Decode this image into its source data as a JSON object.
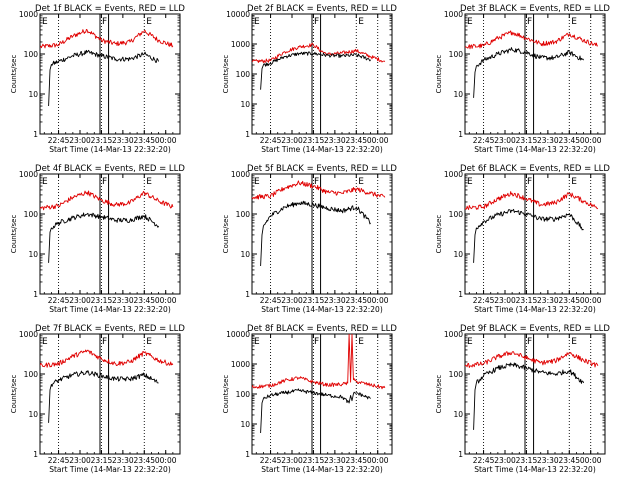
{
  "colors": {
    "events": "#000000",
    "lld": "#e00000",
    "axis": "#000000"
  },
  "chart_data": [
    {
      "type": "line",
      "title": "Det 1f BLACK = Events, RED = LLD",
      "xlabel": "Start Time (14-Mar-13 22:32:20)",
      "ylabel": "Counts/sec",
      "yscale": "log",
      "ylim": [
        1,
        1000
      ],
      "ytick_labels": [
        "1",
        "10",
        "100",
        "1000"
      ],
      "xlim": [
        "22:32",
        "00:10"
      ],
      "xtick_labels": [
        "22:45",
        "23:00",
        "23:15",
        "23:30",
        "23:45",
        "00:00"
      ],
      "markers": {
        "dotted": [
          "22:45",
          "23:15",
          "23:45"
        ],
        "solid": [
          "23:14",
          "23:20"
        ],
        "letters": [
          {
            "at": "22:32",
            "text": "E"
          },
          {
            "at": "23:14",
            "text": "F"
          },
          {
            "at": "23:45",
            "text": "E"
          }
        ]
      },
      "series": [
        {
          "color": "#e00000",
          "x": [
            "22:32",
            "22:45",
            "22:55",
            "23:05",
            "23:15",
            "23:25",
            "23:35",
            "23:45",
            "23:55",
            "00:05"
          ],
          "values": [
            150,
            170,
            280,
            400,
            220,
            180,
            200,
            380,
            220,
            160
          ]
        },
        {
          "color": "#000000",
          "x": [
            "22:38",
            "22:39",
            "22:40",
            "22:45",
            "22:55",
            "23:05",
            "23:15",
            "23:25",
            "23:35",
            "23:45",
            "23:55"
          ],
          "values": [
            5,
            40,
            55,
            65,
            90,
            110,
            90,
            75,
            75,
            100,
            65
          ]
        }
      ]
    },
    {
      "type": "line",
      "title": "Det 2f BLACK = Events, RED = LLD",
      "xlabel": "Start Time (14-Mar-13 22:32:20)",
      "ylabel": "Counts/sec",
      "yscale": "log",
      "ylim": [
        1,
        10000
      ],
      "ytick_labels": [
        "1",
        "10",
        "100",
        "1000",
        "10000"
      ],
      "xlim": [
        "22:32",
        "00:10"
      ],
      "xtick_labels": [
        "22:45",
        "23:00",
        "23:15",
        "23:30",
        "23:45",
        "00:00"
      ],
      "markers": {
        "dotted": [
          "22:45",
          "23:15",
          "23:45",
          "00:00"
        ],
        "solid": [
          "23:14",
          "23:20"
        ],
        "letters": [
          {
            "at": "22:32",
            "text": "E"
          },
          {
            "at": "23:14",
            "text": "F"
          },
          {
            "at": "23:45",
            "text": "E"
          }
        ]
      },
      "series": [
        {
          "color": "#e00000",
          "x": [
            "22:32",
            "22:45",
            "22:55",
            "23:05",
            "23:15",
            "23:20",
            "23:25",
            "23:35",
            "23:45",
            "23:55",
            "00:05"
          ],
          "values": [
            260,
            280,
            550,
            800,
            950,
            600,
            450,
            500,
            600,
            380,
            260
          ]
        },
        {
          "color": "#000000",
          "x": [
            "22:38",
            "22:39",
            "22:40",
            "22:45",
            "22:55",
            "23:05",
            "23:15",
            "23:25",
            "23:35",
            "23:45",
            "23:55"
          ],
          "values": [
            30,
            150,
            200,
            230,
            380,
            480,
            480,
            420,
            400,
            430,
            300
          ]
        }
      ]
    },
    {
      "type": "line",
      "title": "Det 3f BLACK = Events, RED = LLD",
      "xlabel": "Start Time (14-Mar-13 22:32:20)",
      "ylabel": "Counts/sec",
      "yscale": "log",
      "ylim": [
        1,
        1000
      ],
      "ytick_labels": [
        "1",
        "10",
        "100",
        "1000"
      ],
      "xlim": [
        "22:32",
        "00:10"
      ],
      "xtick_labels": [
        "22:45",
        "23:00",
        "23:15",
        "23:30",
        "23:45",
        "00:00"
      ],
      "markers": {
        "dotted": [
          "22:45",
          "23:15",
          "23:45",
          "00:00"
        ],
        "solid": [
          "23:14",
          "23:20"
        ],
        "letters": [
          {
            "at": "22:32",
            "text": "E"
          },
          {
            "at": "23:14",
            "text": "F"
          },
          {
            "at": "23:45",
            "text": "E"
          }
        ]
      },
      "series": [
        {
          "color": "#e00000",
          "x": [
            "22:32",
            "22:45",
            "22:55",
            "23:05",
            "23:15",
            "23:25",
            "23:35",
            "23:45",
            "23:55",
            "00:05"
          ],
          "values": [
            150,
            160,
            250,
            350,
            250,
            180,
            200,
            320,
            220,
            160
          ]
        },
        {
          "color": "#000000",
          "x": [
            "22:38",
            "22:39",
            "22:40",
            "22:45",
            "22:55",
            "23:05",
            "23:15",
            "23:25",
            "23:35",
            "23:45",
            "23:55"
          ],
          "values": [
            8,
            35,
            50,
            70,
            100,
            130,
            110,
            80,
            80,
            110,
            70
          ]
        }
      ]
    },
    {
      "type": "line",
      "title": "Det 4f BLACK = Events, RED = LLD",
      "xlabel": "Start Time (14-Mar-13 22:32:20)",
      "ylabel": "Counts/sec",
      "yscale": "log",
      "ylim": [
        1,
        1000
      ],
      "ytick_labels": [
        "1",
        "10",
        "100",
        "1000"
      ],
      "xlim": [
        "22:32",
        "00:10"
      ],
      "xtick_labels": [
        "22:45",
        "23:00",
        "23:15",
        "23:30",
        "23:45",
        "00:00"
      ],
      "markers": {
        "dotted": [
          "22:45",
          "23:15",
          "23:45"
        ],
        "solid": [
          "23:14",
          "23:20"
        ],
        "letters": [
          {
            "at": "22:32",
            "text": "E"
          },
          {
            "at": "23:14",
            "text": "F"
          },
          {
            "at": "23:45",
            "text": "E"
          }
        ]
      },
      "series": [
        {
          "color": "#e00000",
          "x": [
            "22:32",
            "22:45",
            "22:55",
            "23:05",
            "23:15",
            "23:25",
            "23:35",
            "23:45",
            "23:55",
            "00:05"
          ],
          "values": [
            140,
            160,
            260,
            350,
            220,
            170,
            190,
            340,
            210,
            150
          ]
        },
        {
          "color": "#000000",
          "x": [
            "22:38",
            "22:39",
            "22:40",
            "22:45",
            "22:55",
            "23:05",
            "23:15",
            "23:25",
            "23:35",
            "23:45",
            "23:55"
          ],
          "values": [
            6,
            35,
            45,
            60,
            80,
            100,
            85,
            70,
            70,
            90,
            50
          ]
        }
      ]
    },
    {
      "type": "line",
      "title": "Det 5f BLACK = Events, RED = LLD",
      "xlabel": "Start Time (14-Mar-13 22:32:20)",
      "ylabel": "Counts/sec",
      "yscale": "log",
      "ylim": [
        1,
        1000
      ],
      "ytick_labels": [
        "1",
        "10",
        "100",
        "1000"
      ],
      "xlim": [
        "22:32",
        "00:10"
      ],
      "xtick_labels": [
        "22:45",
        "23:00",
        "23:15",
        "23:30",
        "23:45",
        "00:00"
      ],
      "markers": {
        "dotted": [
          "22:45",
          "23:15",
          "23:45",
          "00:00"
        ],
        "solid": [
          "23:14",
          "23:20"
        ],
        "letters": [
          {
            "at": "22:32",
            "text": "E"
          },
          {
            "at": "23:14",
            "text": "F"
          },
          {
            "at": "23:45",
            "text": "E"
          }
        ]
      },
      "series": [
        {
          "color": "#e00000",
          "x": [
            "22:32",
            "22:45",
            "22:55",
            "23:05",
            "23:15",
            "23:25",
            "23:35",
            "23:45",
            "23:55",
            "00:05"
          ],
          "values": [
            260,
            280,
            450,
            600,
            500,
            350,
            330,
            420,
            330,
            260
          ]
        },
        {
          "color": "#000000",
          "x": [
            "22:38",
            "22:39",
            "22:40",
            "22:45",
            "22:55",
            "23:05",
            "23:15",
            "23:25",
            "23:35",
            "23:45",
            "23:55"
          ],
          "values": [
            5,
            30,
            50,
            90,
            150,
            190,
            170,
            140,
            120,
            150,
            60
          ]
        }
      ]
    },
    {
      "type": "line",
      "title": "Det 6f BLACK = Events, RED = LLD",
      "xlabel": "Start Time (14-Mar-13 22:32:20)",
      "ylabel": "Counts/sec",
      "yscale": "log",
      "ylim": [
        1,
        1000
      ],
      "ytick_labels": [
        "1",
        "10",
        "100",
        "1000"
      ],
      "xlim": [
        "22:32",
        "00:10"
      ],
      "xtick_labels": [
        "22:45",
        "23:00",
        "23:15",
        "23:30",
        "23:45",
        "00:00"
      ],
      "markers": {
        "dotted": [
          "22:45",
          "23:15",
          "23:45",
          "00:00"
        ],
        "solid": [
          "23:14",
          "23:20"
        ],
        "letters": [
          {
            "at": "22:32",
            "text": "E"
          },
          {
            "at": "23:14",
            "text": "F"
          },
          {
            "at": "23:45",
            "text": "E"
          }
        ]
      },
      "series": [
        {
          "color": "#e00000",
          "x": [
            "22:32",
            "22:45",
            "22:55",
            "23:05",
            "23:15",
            "23:25",
            "23:35",
            "23:45",
            "23:55",
            "00:05"
          ],
          "values": [
            140,
            150,
            240,
            330,
            240,
            170,
            190,
            320,
            210,
            140
          ]
        },
        {
          "color": "#000000",
          "x": [
            "22:38",
            "22:39",
            "22:40",
            "22:45",
            "22:55",
            "23:05",
            "23:15",
            "23:25",
            "23:35",
            "23:45",
            "23:55"
          ],
          "values": [
            6,
            30,
            45,
            65,
            95,
            120,
            100,
            75,
            75,
            100,
            40
          ]
        }
      ]
    },
    {
      "type": "line",
      "title": "Det 7f BLACK = Events, RED = LLD",
      "xlabel": "Start Time (14-Mar-13 22:32:20)",
      "ylabel": "Counts/sec",
      "yscale": "log",
      "ylim": [
        1,
        1000
      ],
      "ytick_labels": [
        "1",
        "10",
        "100",
        "1000"
      ],
      "xlim": [
        "22:32",
        "00:10"
      ],
      "xtick_labels": [
        "22:45",
        "23:00",
        "23:15",
        "23:30",
        "23:45",
        "00:00"
      ],
      "markers": {
        "dotted": [
          "22:45",
          "23:15",
          "23:45"
        ],
        "solid": [
          "23:14",
          "23:20"
        ],
        "letters": [
          {
            "at": "22:32",
            "text": "E"
          },
          {
            "at": "23:14",
            "text": "F"
          },
          {
            "at": "23:45",
            "text": "E"
          }
        ]
      },
      "series": [
        {
          "color": "#e00000",
          "x": [
            "22:32",
            "22:45",
            "22:55",
            "23:05",
            "23:15",
            "23:25",
            "23:35",
            "23:45",
            "23:55",
            "00:05"
          ],
          "values": [
            160,
            180,
            280,
            380,
            240,
            180,
            200,
            340,
            220,
            170
          ]
        },
        {
          "color": "#000000",
          "x": [
            "22:38",
            "22:39",
            "22:40",
            "22:45",
            "22:55",
            "23:05",
            "23:15",
            "23:25",
            "23:35",
            "23:45",
            "23:55"
          ],
          "values": [
            6,
            40,
            55,
            70,
            95,
            110,
            90,
            75,
            75,
            95,
            60
          ]
        }
      ]
    },
    {
      "type": "line",
      "title": "Det 8f BLACK = Events, RED = LLD",
      "xlabel": "Start Time (14-Mar-13 22:32:20)",
      "ylabel": "Counts/sec",
      "yscale": "log",
      "ylim": [
        1,
        10000
      ],
      "ytick_labels": [
        "1",
        "10",
        "100",
        "1000",
        "10000"
      ],
      "xlim": [
        "22:32",
        "00:10"
      ],
      "xtick_labels": [
        "22:45",
        "23:00",
        "23:15",
        "23:30",
        "23:45",
        "00:00"
      ],
      "markers": {
        "dotted": [
          "22:45",
          "23:15",
          "23:45",
          "00:00"
        ],
        "solid": [
          "23:14",
          "23:20"
        ],
        "letters": [
          {
            "at": "22:32",
            "text": "E"
          },
          {
            "at": "23:14",
            "text": "F"
          },
          {
            "at": "23:45",
            "text": "E"
          }
        ]
      },
      "series": [
        {
          "color": "#e00000",
          "x": [
            "22:32",
            "22:45",
            "22:55",
            "23:05",
            "23:15",
            "23:25",
            "23:35",
            "23:39",
            "23:40",
            "23:41",
            "23:42",
            "23:43",
            "23:45",
            "23:55",
            "00:05"
          ],
          "values": [
            170,
            190,
            280,
            350,
            250,
            200,
            210,
            230,
            10000,
            250,
            10000,
            300,
            260,
            200,
            160
          ]
        },
        {
          "color": "#000000",
          "x": [
            "22:38",
            "22:39",
            "22:40",
            "22:45",
            "22:55",
            "23:05",
            "23:15",
            "23:25",
            "23:35",
            "23:40",
            "23:41",
            "23:42",
            "23:43",
            "23:45",
            "23:55"
          ],
          "values": [
            5,
            50,
            70,
            90,
            110,
            130,
            110,
            90,
            80,
            50,
            90,
            60,
            100,
            110,
            70
          ]
        }
      ]
    },
    {
      "type": "line",
      "title": "Det 9f BLACK = Events, RED = LLD",
      "xlabel": "Start Time (14-Mar-13 22:32:20)",
      "ylabel": "Counts/sec",
      "yscale": "log",
      "ylim": [
        1,
        1000
      ],
      "ytick_labels": [
        "1",
        "10",
        "100",
        "1000"
      ],
      "xlim": [
        "22:32",
        "00:10"
      ],
      "xtick_labels": [
        "22:45",
        "23:00",
        "23:15",
        "23:30",
        "23:45",
        "00:00"
      ],
      "markers": {
        "dotted": [
          "22:45",
          "23:15",
          "23:45",
          "00:00"
        ],
        "solid": [
          "23:14",
          "23:20"
        ],
        "letters": [
          {
            "at": "22:32",
            "text": "E"
          },
          {
            "at": "23:14",
            "text": "F"
          },
          {
            "at": "23:45",
            "text": "E"
          }
        ]
      },
      "series": [
        {
          "color": "#e00000",
          "x": [
            "22:32",
            "22:45",
            "22:55",
            "23:05",
            "23:15",
            "23:25",
            "23:35",
            "23:45",
            "23:55",
            "00:05"
          ],
          "values": [
            160,
            180,
            270,
            350,
            250,
            190,
            210,
            340,
            220,
            160
          ]
        },
        {
          "color": "#000000",
          "x": [
            "22:38",
            "22:39",
            "22:40",
            "22:45",
            "22:55",
            "23:05",
            "23:15",
            "23:25",
            "23:35",
            "23:45",
            "23:55"
          ],
          "values": [
            4,
            40,
            60,
            90,
            140,
            170,
            140,
            110,
            100,
            120,
            60
          ]
        }
      ]
    }
  ]
}
